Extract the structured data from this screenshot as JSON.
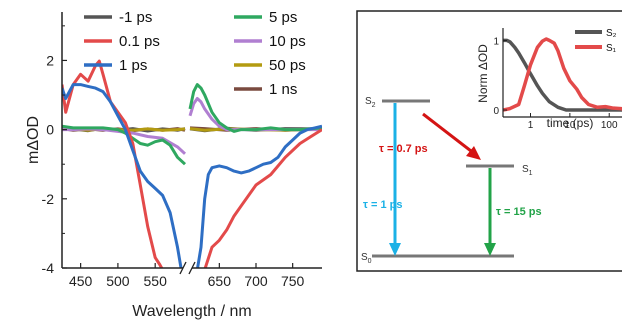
{
  "colors": {
    "m1ps": "#555555",
    "p01ps": "#e34a4a",
    "p1ps": "#2e6ec4",
    "p5ps": "#2fa860",
    "p10ps": "#b07fd1",
    "p50ps": "#b39b11",
    "p1ns": "#7a4a3f",
    "arrow_red": "#d41414",
    "arrow_cyan": "#1bb1e6",
    "arrow_green": "#22a348",
    "level": "#777777",
    "inset_s2": "#555555",
    "inset_s1": "#e34a4a"
  },
  "chart_data": [
    {
      "type": "line",
      "title": "",
      "xlabel": "Wavelength / nm",
      "ylabel": "mΔOD",
      "xlim": [
        425,
        790
      ],
      "ylim": [
        -4,
        3.4
      ],
      "xbreak": [
        590,
        610
      ],
      "xticks": [
        "450",
        "500",
        "550",
        "650",
        "700",
        "750"
      ],
      "yticks": [
        "-4",
        "-2",
        "0",
        "2"
      ],
      "legend_position": "top",
      "series": [
        {
          "name": "-1 ps",
          "color_key": "m1ps",
          "x": [
            425,
            440,
            460,
            480,
            500,
            520,
            540,
            560,
            580,
            590,
            610,
            630,
            660,
            700,
            740,
            790
          ],
          "y": [
            0.05,
            0.02,
            -0.03,
            0.04,
            -0.02,
            0.03,
            -0.04,
            0.02,
            -0.02,
            0.03,
            0.02,
            -0.03,
            0.04,
            -0.02,
            0.03,
            0.02
          ]
        },
        {
          "name": "0.1 ps",
          "color_key": "p01ps",
          "x": [
            425,
            430,
            440,
            450,
            460,
            470,
            475,
            480,
            490,
            500,
            510,
            520,
            530,
            540,
            550,
            556,
            560,
            630,
            640,
            650,
            660,
            670,
            680,
            700,
            720,
            740,
            760,
            775,
            790
          ],
          "y": [
            1.3,
            0.5,
            1.3,
            1.6,
            1.4,
            1.85,
            1.98,
            1.6,
            0.8,
            0.5,
            0.2,
            -0.4,
            -1.6,
            -2.8,
            -3.7,
            -3.9,
            -4.05,
            -4.05,
            -3.4,
            -3.2,
            -2.9,
            -2.5,
            -2.2,
            -1.6,
            -1.3,
            -0.8,
            -0.4,
            -0.2,
            0.0
          ]
        },
        {
          "name": "1 ps",
          "color_key": "p1ps",
          "x": [
            425,
            430,
            440,
            450,
            460,
            470,
            480,
            490,
            500,
            510,
            520,
            530,
            540,
            550,
            560,
            570,
            580,
            585,
            620,
            625,
            630,
            635,
            640,
            650,
            660,
            670,
            680,
            690,
            700,
            710,
            720,
            730,
            740,
            750,
            760,
            770,
            780,
            790
          ],
          "y": [
            1.2,
            0.9,
            1.3,
            1.3,
            1.25,
            1.2,
            1.1,
            0.8,
            0.4,
            0.0,
            -0.6,
            -1.2,
            -1.5,
            -1.7,
            -1.9,
            -2.4,
            -3.4,
            -4.05,
            -4.05,
            -3.4,
            -2.0,
            -1.3,
            -1.1,
            -1.05,
            -1.1,
            -1.2,
            -1.25,
            -1.2,
            -1.1,
            -1.0,
            -0.95,
            -0.8,
            -0.5,
            -0.3,
            -0.1,
            0.0,
            0.05,
            0.1
          ]
        },
        {
          "name": "5 ps",
          "color_key": "p5ps",
          "x": [
            425,
            440,
            460,
            480,
            500,
            510,
            520,
            530,
            540,
            550,
            560,
            570,
            580,
            590,
            610,
            615,
            620,
            625,
            630,
            640,
            650,
            660,
            670,
            680,
            700,
            720,
            740,
            760,
            790
          ],
          "y": [
            0.1,
            0.05,
            0.05,
            0.05,
            0.0,
            -0.1,
            -0.25,
            -0.4,
            -0.45,
            -0.35,
            -0.3,
            -0.45,
            -0.8,
            -1.0,
            0.6,
            1.1,
            1.3,
            1.2,
            1.0,
            0.5,
            0.2,
            0.05,
            -0.05,
            0.0,
            0.0,
            0.05,
            0.0,
            0.0,
            0.05
          ]
        },
        {
          "name": "10 ps",
          "color_key": "p10ps",
          "x": [
            425,
            440,
            460,
            480,
            500,
            520,
            540,
            560,
            580,
            590,
            610,
            615,
            620,
            625,
            630,
            640,
            650,
            660,
            680,
            700,
            740,
            790
          ],
          "y": [
            0.0,
            0.0,
            0.02,
            0.0,
            -0.05,
            -0.1,
            -0.2,
            -0.25,
            -0.5,
            -0.7,
            0.4,
            0.75,
            0.9,
            0.8,
            0.6,
            0.3,
            0.1,
            0.0,
            0.0,
            0.0,
            0.0,
            0.0
          ]
        },
        {
          "name": "50 ps",
          "color_key": "p50ps",
          "x": [
            425,
            440,
            460,
            480,
            500,
            520,
            540,
            560,
            580,
            590,
            610,
            630,
            660,
            700,
            740,
            790
          ],
          "y": [
            0.0,
            0.02,
            -0.02,
            0.03,
            0.0,
            -0.02,
            0.02,
            -0.02,
            0.0,
            0.02,
            0.03,
            -0.02,
            0.02,
            0.0,
            -0.02,
            0.03
          ]
        },
        {
          "name": "1 ns",
          "color_key": "p1ns",
          "x": [
            425,
            440,
            460,
            480,
            500,
            520,
            540,
            560,
            580,
            590,
            610,
            630,
            660,
            700,
            740,
            790
          ],
          "y": [
            0.03,
            -0.02,
            0.02,
            -0.02,
            0.02,
            -0.03,
            0.02,
            -0.02,
            0.03,
            -0.02,
            0.05,
            0.03,
            -0.02,
            0.03,
            -0.02,
            0.02
          ]
        }
      ]
    },
    {
      "type": "line",
      "title": "",
      "xlabel": "time (ps)",
      "ylabel": "Norm ΔOD",
      "xscale": "log",
      "xlim": [
        0.2,
        300
      ],
      "ylim": [
        -0.1,
        1.15
      ],
      "xticks": [
        "1",
        "10",
        "100"
      ],
      "yticks": [
        "0",
        "1"
      ],
      "legend_position": "top-right",
      "series": [
        {
          "name": "S₂",
          "color_key": "inset_s2",
          "x": [
            0.2,
            0.25,
            0.3,
            0.4,
            0.5,
            0.7,
            1,
            1.5,
            2,
            3,
            5,
            8,
            12,
            20,
            40,
            100,
            300
          ],
          "y": [
            1.0,
            1.0,
            0.98,
            0.9,
            0.82,
            0.68,
            0.52,
            0.35,
            0.24,
            0.12,
            0.04,
            0.0,
            0.0,
            0.0,
            0.0,
            0.0,
            0.0
          ]
        },
        {
          "name": "S₁",
          "color_key": "inset_s1",
          "x": [
            0.2,
            0.3,
            0.5,
            0.7,
            1,
            1.5,
            2,
            2.5,
            3,
            4,
            5,
            7,
            10,
            15,
            20,
            30,
            50,
            80,
            120,
            200,
            300
          ],
          "y": [
            0.0,
            0.02,
            0.08,
            0.35,
            0.65,
            0.9,
            0.99,
            1.02,
            1.0,
            0.96,
            0.85,
            0.6,
            0.42,
            0.3,
            0.18,
            0.08,
            0.04,
            0.05,
            0.03,
            0.02,
            0.0
          ]
        }
      ]
    }
  ],
  "diagram": {
    "s2_label_main": "S",
    "s2_label_sub": "2",
    "s1_label_main": "S",
    "s1_label_sub": "1",
    "s0_label_main": "S",
    "s0_label_sub": "0",
    "tau_red": "τ = 0.7 ps",
    "tau_cyan": "τ = 1 ps",
    "tau_green": "τ = 15 ps"
  }
}
